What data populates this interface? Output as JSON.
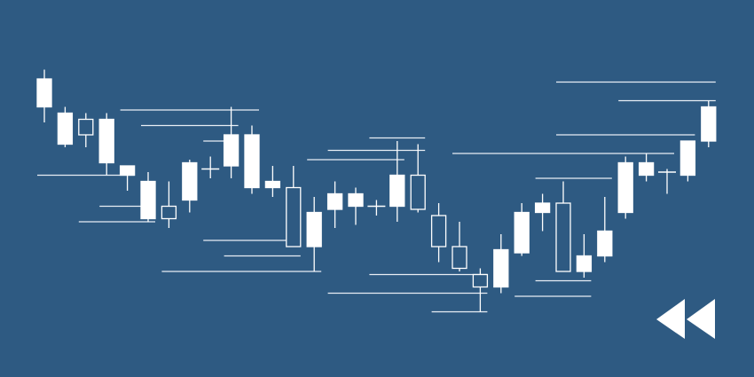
{
  "colors": {
    "background": "#2e5a82",
    "candle": "#ffffff",
    "line": "#e8eef5"
  },
  "icon": "rewind-icon",
  "chart_data": {
    "type": "candlestick",
    "title": "",
    "xlabel": "",
    "ylabel": "",
    "ylim": [
      0,
      100
    ],
    "grid": false,
    "legend": "none",
    "candles": [
      {
        "o": 77,
        "h": 89,
        "l": 72,
        "c": 86
      },
      {
        "o": 65,
        "h": 77,
        "l": 64,
        "c": 75
      },
      {
        "o": 73,
        "h": 75,
        "l": 64,
        "c": 68
      },
      {
        "o": 59,
        "h": 75,
        "l": 55,
        "c": 73
      },
      {
        "o": 55,
        "h": 58,
        "l": 50,
        "c": 58
      },
      {
        "o": 41,
        "h": 56,
        "l": 40,
        "c": 53
      },
      {
        "o": 45,
        "h": 53,
        "l": 38,
        "c": 41
      },
      {
        "o": 47,
        "h": 60,
        "l": 43,
        "c": 59
      },
      {
        "o": 57,
        "h": 61,
        "l": 54,
        "c": 57
      },
      {
        "o": 58,
        "h": 77,
        "l": 54,
        "c": 68
      },
      {
        "o": 51,
        "h": 71,
        "l": 49,
        "c": 68
      },
      {
        "o": 51,
        "h": 58,
        "l": 48,
        "c": 53
      },
      {
        "o": 51,
        "h": 58,
        "l": 32,
        "c": 32
      },
      {
        "o": 32,
        "h": 48,
        "l": 24,
        "c": 43
      },
      {
        "o": 44,
        "h": 53,
        "l": 38,
        "c": 49
      },
      {
        "o": 45,
        "h": 51,
        "l": 39,
        "c": 49
      },
      {
        "o": 45,
        "h": 47,
        "l": 42,
        "c": 45
      },
      {
        "o": 45,
        "h": 66,
        "l": 40,
        "c": 55
      },
      {
        "o": 55,
        "h": 65,
        "l": 43,
        "c": 44
      },
      {
        "o": 42,
        "h": 46,
        "l": 27,
        "c": 32
      },
      {
        "o": 32,
        "h": 40,
        "l": 24,
        "c": 25
      },
      {
        "o": 23,
        "h": 25,
        "l": 11,
        "c": 19
      },
      {
        "o": 19,
        "h": 36,
        "l": 17,
        "c": 31
      },
      {
        "o": 30,
        "h": 46,
        "l": 29,
        "c": 43
      },
      {
        "o": 43,
        "h": 49,
        "l": 37,
        "c": 46
      },
      {
        "o": 46,
        "h": 53,
        "l": 24,
        "c": 24
      },
      {
        "o": 24,
        "h": 36,
        "l": 22,
        "c": 29
      },
      {
        "o": 29,
        "h": 48,
        "l": 27,
        "c": 37
      },
      {
        "o": 43,
        "h": 61,
        "l": 41,
        "c": 59
      },
      {
        "o": 55,
        "h": 62,
        "l": 53,
        "c": 59
      },
      {
        "o": 56,
        "h": 57,
        "l": 49,
        "c": 56
      },
      {
        "o": 55,
        "h": 65,
        "l": 53,
        "c": 66
      },
      {
        "o": 66,
        "h": 79,
        "l": 64,
        "c": 77
      }
    ],
    "support_resistance_levels": [
      {
        "value": 76,
        "from_candle": 4,
        "to_candle": 10
      },
      {
        "value": 71,
        "from_candle": 5,
        "to_candle": 9
      },
      {
        "value": 66,
        "from_candle": 8,
        "to_candle": 9
      },
      {
        "value": 55,
        "from_candle": 0,
        "to_candle": 4
      },
      {
        "value": 45,
        "from_candle": 3,
        "to_candle": 5
      },
      {
        "value": 40,
        "from_candle": 2,
        "to_candle": 5
      },
      {
        "value": 34,
        "from_candle": 8,
        "to_candle": 12
      },
      {
        "value": 29,
        "from_candle": 9,
        "to_candle": 12
      },
      {
        "value": 24,
        "from_candle": 6,
        "to_candle": 13
      },
      {
        "value": 60,
        "from_candle": 13,
        "to_candle": 17
      },
      {
        "value": 63,
        "from_candle": 14,
        "to_candle": 18
      },
      {
        "value": 67,
        "from_candle": 16,
        "to_candle": 18
      },
      {
        "value": 23,
        "from_candle": 16,
        "to_candle": 21
      },
      {
        "value": 17,
        "from_candle": 14,
        "to_candle": 21
      },
      {
        "value": 11,
        "from_candle": 19,
        "to_candle": 21
      },
      {
        "value": 62,
        "from_candle": 20,
        "to_candle": 30
      },
      {
        "value": 54,
        "from_candle": 24,
        "to_candle": 27
      },
      {
        "value": 21,
        "from_candle": 24,
        "to_candle": 26
      },
      {
        "value": 16,
        "from_candle": 23,
        "to_candle": 26
      },
      {
        "value": 85,
        "from_candle": 25,
        "to_candle": 32
      },
      {
        "value": 79,
        "from_candle": 28,
        "to_candle": 32
      },
      {
        "value": 68,
        "from_candle": 25,
        "to_candle": 31
      }
    ]
  }
}
